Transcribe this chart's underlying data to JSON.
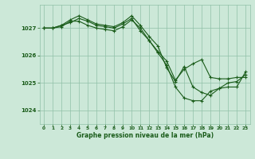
{
  "title": "Graphe pression niveau de la mer (hPa)",
  "background_color": "#cce8d8",
  "plot_bg_color": "#cce8d8",
  "line_color": "#1a5c1a",
  "marker_color": "#1a5c1a",
  "grid_color": "#90c0a8",
  "text_color": "#1a5c1a",
  "xlim": [
    -0.5,
    23.5
  ],
  "ylim": [
    1023.5,
    1027.85
  ],
  "yticks": [
    1024,
    1025,
    1026,
    1027
  ],
  "xticks": [
    0,
    1,
    2,
    3,
    4,
    5,
    6,
    7,
    8,
    9,
    10,
    11,
    12,
    13,
    14,
    15,
    16,
    17,
    18,
    19,
    20,
    21,
    22,
    23
  ],
  "series": [
    {
      "x": [
        0,
        1,
        2,
        3,
        4,
        5,
        6,
        7,
        8,
        9,
        10,
        11,
        12,
        13,
        14,
        15,
        16,
        17,
        18,
        19,
        20,
        21,
        22,
        23
      ],
      "y": [
        1027.0,
        1027.0,
        1027.1,
        1027.2,
        1027.35,
        1027.25,
        1027.1,
        1027.05,
        1027.0,
        1027.15,
        1027.35,
        1026.9,
        1026.55,
        1026.15,
        1025.8,
        1025.1,
        1025.5,
        1025.7,
        1025.85,
        1025.2,
        1025.15,
        1025.15,
        1025.2,
        1025.2
      ]
    },
    {
      "x": [
        0,
        1,
        2,
        3,
        4,
        5,
        6,
        7,
        8,
        9,
        10,
        11,
        12,
        13,
        14,
        15,
        16,
        17,
        18,
        19,
        20,
        21,
        22,
        23
      ],
      "y": [
        1027.0,
        1027.0,
        1027.1,
        1027.3,
        1027.45,
        1027.3,
        1027.15,
        1027.1,
        1027.05,
        1027.2,
        1027.45,
        1027.1,
        1026.7,
        1026.35,
        1025.55,
        1025.05,
        1025.6,
        1024.85,
        1024.65,
        1024.55,
        1024.8,
        1024.85,
        1024.85,
        1025.4
      ]
    },
    {
      "x": [
        0,
        1,
        2,
        3,
        4,
        5,
        6,
        7,
        8,
        9,
        10,
        11,
        12,
        13,
        14,
        15,
        16,
        17,
        18,
        19,
        20,
        21,
        22,
        23
      ],
      "y": [
        1027.0,
        1027.0,
        1027.05,
        1027.25,
        1027.25,
        1027.1,
        1027.0,
        1026.95,
        1026.9,
        1027.05,
        1027.3,
        1027.0,
        1026.55,
        1026.1,
        1025.65,
        1024.85,
        1024.45,
        1024.35,
        1024.35,
        1024.7,
        1024.8,
        1025.0,
        1025.05,
        1025.3
      ]
    }
  ]
}
